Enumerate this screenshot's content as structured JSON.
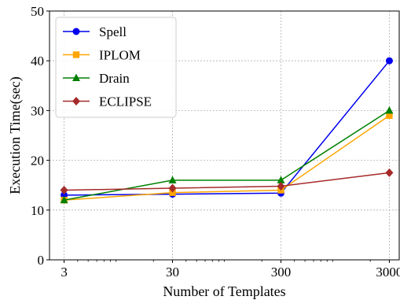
{
  "chart_data": {
    "type": "line",
    "title": "",
    "xlabel": "Number of Templates",
    "ylabel": "Execution Time(sec)",
    "xscale": "log",
    "x": [
      3,
      30,
      300,
      3000
    ],
    "x_tick_labels": [
      "3",
      "30",
      "300",
      "3000"
    ],
    "y_ticks": [
      0,
      10,
      20,
      30,
      40,
      50
    ],
    "y_tick_labels": [
      "0",
      "10",
      "20",
      "30",
      "40",
      "50"
    ],
    "xlim": [
      2.2,
      3700
    ],
    "ylim": [
      0,
      50
    ],
    "grid": true,
    "legend_position": "top-left",
    "series": [
      {
        "name": "Spell",
        "values": [
          13.0,
          13.2,
          13.4,
          40.0
        ],
        "color": "#0000ee",
        "marker": "circle"
      },
      {
        "name": "IPLOM",
        "values": [
          12.0,
          13.5,
          14.0,
          29.0
        ],
        "color": "#ffa500",
        "marker": "square"
      },
      {
        "name": "Drain",
        "values": [
          12.0,
          16.0,
          16.0,
          30.0
        ],
        "color": "#008000",
        "marker": "triangle"
      },
      {
        "name": "ECLIPSE",
        "values": [
          14.0,
          14.4,
          14.8,
          17.5
        ],
        "color": "#a52a2a",
        "marker": "diamond"
      }
    ]
  }
}
